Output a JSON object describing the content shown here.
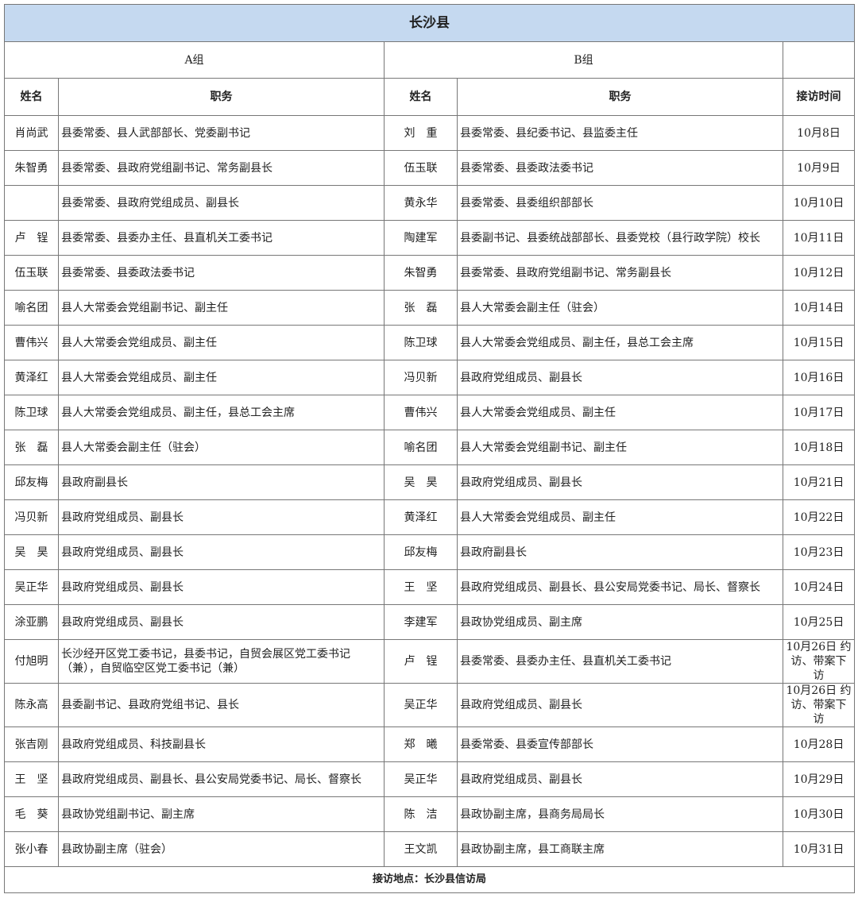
{
  "title": "长沙县",
  "groups": {
    "a": "A组",
    "b": "B组"
  },
  "headers": {
    "name": "姓名",
    "position": "职务",
    "time": "接访时间"
  },
  "rows": [
    {
      "a_name": "肖尚武",
      "a_pos": "县委常委、县人武部部长、党委副书记",
      "b_name": "刘　重",
      "b_pos": "县委常委、县纪委书记、县监委主任",
      "time": "10月8日"
    },
    {
      "a_name": "朱智勇",
      "a_pos": "县委常委、县政府党组副书记、常务副县长",
      "b_name": "伍玉联",
      "b_pos": "县委常委、县委政法委书记",
      "time": "10月9日"
    },
    {
      "a_name": "",
      "a_pos": "县委常委、县政府党组成员、副县长",
      "b_name": "黄永华",
      "b_pos": "县委常委、县委组织部部长",
      "time": "10月10日"
    },
    {
      "a_name": "卢　锃",
      "a_pos": "县委常委、县委办主任、县直机关工委书记",
      "b_name": "陶建军",
      "b_pos": "县委副书记、县委统战部部长、县委党校（县行政学院）校长",
      "time": "10月11日"
    },
    {
      "a_name": "伍玉联",
      "a_pos": "县委常委、县委政法委书记",
      "b_name": "朱智勇",
      "b_pos": "县委常委、县政府党组副书记、常务副县长",
      "time": "10月12日"
    },
    {
      "a_name": "喻名团",
      "a_pos": "县人大常委会党组副书记、副主任",
      "b_name": "张　磊",
      "b_pos": "县人大常委会副主任（驻会）",
      "time": "10月14日"
    },
    {
      "a_name": "曹伟兴",
      "a_pos": "县人大常委会党组成员、副主任",
      "b_name": "陈卫球",
      "b_pos": "县人大常委会党组成员、副主任，县总工会主席",
      "time": "10月15日"
    },
    {
      "a_name": "黄泽红",
      "a_pos": "县人大常委会党组成员、副主任",
      "b_name": "冯贝新",
      "b_pos": "县政府党组成员、副县长",
      "time": "10月16日"
    },
    {
      "a_name": "陈卫球",
      "a_pos": "县人大常委会党组成员、副主任，县总工会主席",
      "b_name": "曹伟兴",
      "b_pos": "县人大常委会党组成员、副主任",
      "time": "10月17日"
    },
    {
      "a_name": "张　磊",
      "a_pos": "县人大常委会副主任（驻会）",
      "b_name": "喻名团",
      "b_pos": "县人大常委会党组副书记、副主任",
      "time": "10月18日"
    },
    {
      "a_name": "邱友梅",
      "a_pos": "县政府副县长",
      "b_name": "吴　昊",
      "b_pos": "县政府党组成员、副县长",
      "time": "10月21日"
    },
    {
      "a_name": "冯贝新",
      "a_pos": "县政府党组成员、副县长",
      "b_name": "黄泽红",
      "b_pos": "县人大常委会党组成员、副主任",
      "time": "10月22日"
    },
    {
      "a_name": "吴　昊",
      "a_pos": "县政府党组成员、副县长",
      "b_name": "邱友梅",
      "b_pos": "县政府副县长",
      "time": "10月23日"
    },
    {
      "a_name": "吴正华",
      "a_pos": "县政府党组成员、副县长",
      "b_name": "王　坚",
      "b_pos": "县政府党组成员、副县长、县公安局党委书记、局长、督察长",
      "time": "10月24日"
    },
    {
      "a_name": "涂亚鹏",
      "a_pos": "县政府党组成员、副县长",
      "b_name": "李建军",
      "b_pos": "县政协党组成员、副主席",
      "time": "10月25日"
    },
    {
      "a_name": "付旭明",
      "a_pos": "长沙经开区党工委书记，县委书记，自贸会展区党工委书记（兼），自贸临空区党工委书记（兼）",
      "b_name": "卢　锃",
      "b_pos": "县委常委、县委办主任、县直机关工委书记",
      "time": "10月26日 约访、带案下访"
    },
    {
      "a_name": "陈永高",
      "a_pos": "县委副书记、县政府党组书记、县长",
      "b_name": "吴正华",
      "b_pos": "县政府党组成员、副县长",
      "time": "10月26日 约访、带案下访"
    },
    {
      "a_name": "张吉刚",
      "a_pos": "县政府党组成员、科技副县长",
      "b_name": "郑　曦",
      "b_pos": "县委常委、县委宣传部部长",
      "time": "10月28日"
    },
    {
      "a_name": "王　坚",
      "a_pos": "县政府党组成员、副县长、县公安局党委书记、局长、督察长",
      "b_name": "吴正华",
      "b_pos": "县政府党组成员、副县长",
      "time": "10月29日"
    },
    {
      "a_name": "毛　葵",
      "a_pos": "县政协党组副书记、副主席",
      "b_name": "陈　洁",
      "b_pos": "县政协副主席，县商务局局长",
      "time": "10月30日"
    },
    {
      "a_name": "张小春",
      "a_pos": "县政协副主席（驻会）",
      "b_name": "王文凯",
      "b_pos": "县政协副主席，县工商联主席",
      "time": "10月31日"
    }
  ],
  "footer": "接访地点：长沙县信访局",
  "colors": {
    "title_bg": "#c5d9f0",
    "border": "#777777"
  }
}
